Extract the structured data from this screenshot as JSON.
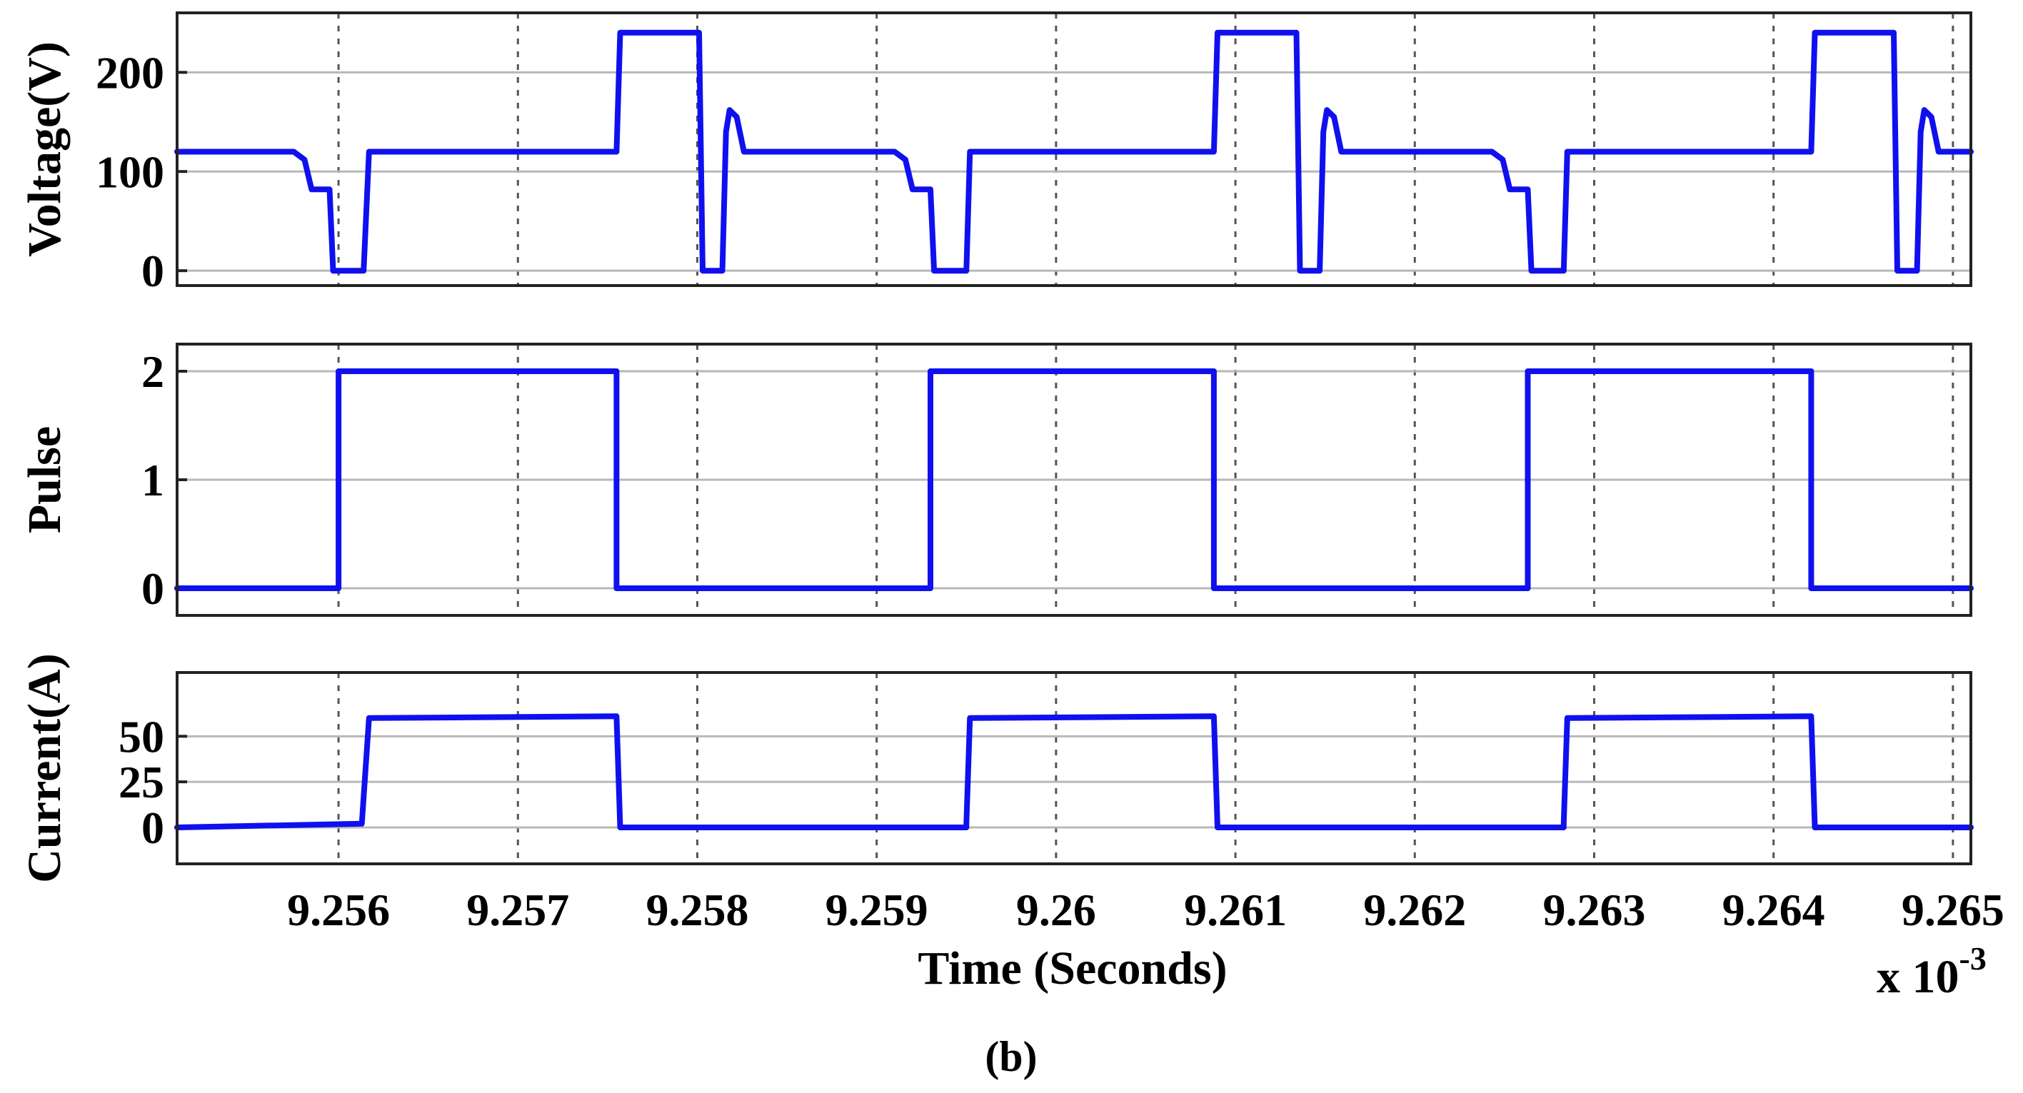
{
  "chart_data": {
    "type": "line",
    "x_multiplier": "x 10",
    "x_multiplier_exp": "-3",
    "xlabel": "Time (Seconds)",
    "caption": "(b)",
    "xlim": [
      9.2551,
      9.2651
    ],
    "x_ticks": [
      9.256,
      9.257,
      9.258,
      9.259,
      9.26,
      9.261,
      9.262,
      9.263,
      9.264,
      9.265
    ],
    "x_tick_labels": [
      "9.256",
      "9.257",
      "9.258",
      "9.259",
      "9.26",
      "9.261",
      "9.262",
      "9.263",
      "9.264",
      "9.265"
    ],
    "grid": true,
    "panels": [
      {
        "ylabel": "Voltage(V)",
        "ylim": [
          -15,
          260
        ],
        "y_ticks": [
          0,
          100,
          200
        ],
        "y_tick_labels": [
          "0",
          "100",
          "200"
        ],
        "x": [
          9.2551,
          9.25575,
          9.25581,
          9.25585,
          9.25595,
          9.25597,
          9.25614,
          9.25617,
          9.25755,
          9.25757,
          9.25801,
          9.25803,
          9.25814,
          9.25816,
          9.25818,
          9.25822,
          9.25826,
          9.2584,
          9.2591,
          9.25916,
          9.2592,
          9.2593,
          9.25932,
          9.2595,
          9.25952,
          9.26088,
          9.2609,
          9.26134,
          9.26136,
          9.26147,
          9.26149,
          9.26151,
          9.26155,
          9.26159,
          9.2617,
          9.26243,
          9.26249,
          9.26253,
          9.26263,
          9.26265,
          9.26283,
          9.26285,
          9.26421,
          9.26423,
          9.26467,
          9.26469,
          9.2648,
          9.26482,
          9.26484,
          9.26488,
          9.26492,
          9.265,
          9.2651
        ],
        "y": [
          120,
          120,
          112,
          82,
          82,
          0,
          0,
          120,
          120,
          240,
          240,
          0,
          0,
          140,
          162,
          155,
          120,
          120,
          120,
          112,
          82,
          82,
          0,
          0,
          120,
          120,
          240,
          240,
          0,
          0,
          140,
          162,
          155,
          120,
          120,
          120,
          112,
          82,
          82,
          0,
          0,
          120,
          120,
          240,
          240,
          0,
          0,
          140,
          162,
          155,
          120,
          120,
          120
        ]
      },
      {
        "ylabel": "Pulse",
        "ylim": [
          -0.25,
          2.25
        ],
        "y_ticks": [
          0,
          1,
          2
        ],
        "y_tick_labels": [
          "0",
          "1",
          "2"
        ],
        "x": [
          9.2551,
          9.256,
          9.256,
          9.25755,
          9.25755,
          9.2593,
          9.2593,
          9.26088,
          9.26088,
          9.26263,
          9.26263,
          9.26421,
          9.26421,
          9.2651
        ],
        "y": [
          0,
          0,
          2,
          2,
          0,
          0,
          2,
          2,
          0,
          0,
          2,
          2,
          0,
          0
        ]
      },
      {
        "ylabel": "Current(A)",
        "ylim": [
          -20,
          85
        ],
        "y_ticks": [
          0,
          25,
          50
        ],
        "y_tick_labels": [
          "0",
          "25",
          "50"
        ],
        "x": [
          9.2551,
          9.25613,
          9.25617,
          9.25755,
          9.25757,
          9.2595,
          9.2595,
          9.25952,
          9.26088,
          9.2609,
          9.26283,
          9.26283,
          9.26285,
          9.26421,
          9.26423,
          9.2651
        ],
        "y": [
          0,
          2,
          60,
          61,
          0,
          0,
          2,
          60,
          61,
          0,
          0,
          2,
          60,
          61,
          0,
          0
        ]
      }
    ]
  }
}
